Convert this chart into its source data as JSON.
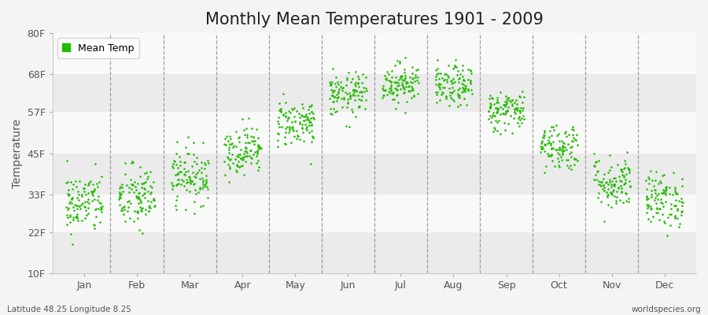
{
  "title": "Monthly Mean Temperatures 1901 - 2009",
  "ylabel": "Temperature",
  "yticks": [
    10,
    22,
    33,
    45,
    57,
    68,
    80
  ],
  "ytick_labels": [
    "10F",
    "22F",
    "33F",
    "45F",
    "57F",
    "68F",
    "80F"
  ],
  "ylim": [
    10,
    80
  ],
  "months": [
    "Jan",
    "Feb",
    "Mar",
    "Apr",
    "May",
    "Jun",
    "Jul",
    "Aug",
    "Sep",
    "Oct",
    "Nov",
    "Dec"
  ],
  "dot_color": "#22bb00",
  "dot_size": 3.5,
  "background_color": "#f4f4f4",
  "band_colors": [
    "#ebebeb",
    "#f9f9f9"
  ],
  "legend_label": "Mean Temp",
  "bottom_left": "Latitude 48.25 Longitude 8.25",
  "bottom_right": "worldspecies.org",
  "title_fontsize": 15,
  "axis_fontsize": 9,
  "label_fontsize": 10,
  "monthly_mean_temps_F": [
    30.5,
    32.0,
    38.5,
    46.0,
    54.0,
    62.0,
    65.5,
    64.5,
    57.5,
    47.0,
    36.5,
    31.5
  ],
  "monthly_std_F": [
    4.5,
    4.8,
    4.0,
    3.5,
    3.5,
    3.2,
    3.0,
    3.0,
    3.0,
    3.5,
    4.0,
    4.0
  ],
  "n_years": 109,
  "seed": 42,
  "xlim_left": -0.5,
  "xlim_right": 12.5
}
